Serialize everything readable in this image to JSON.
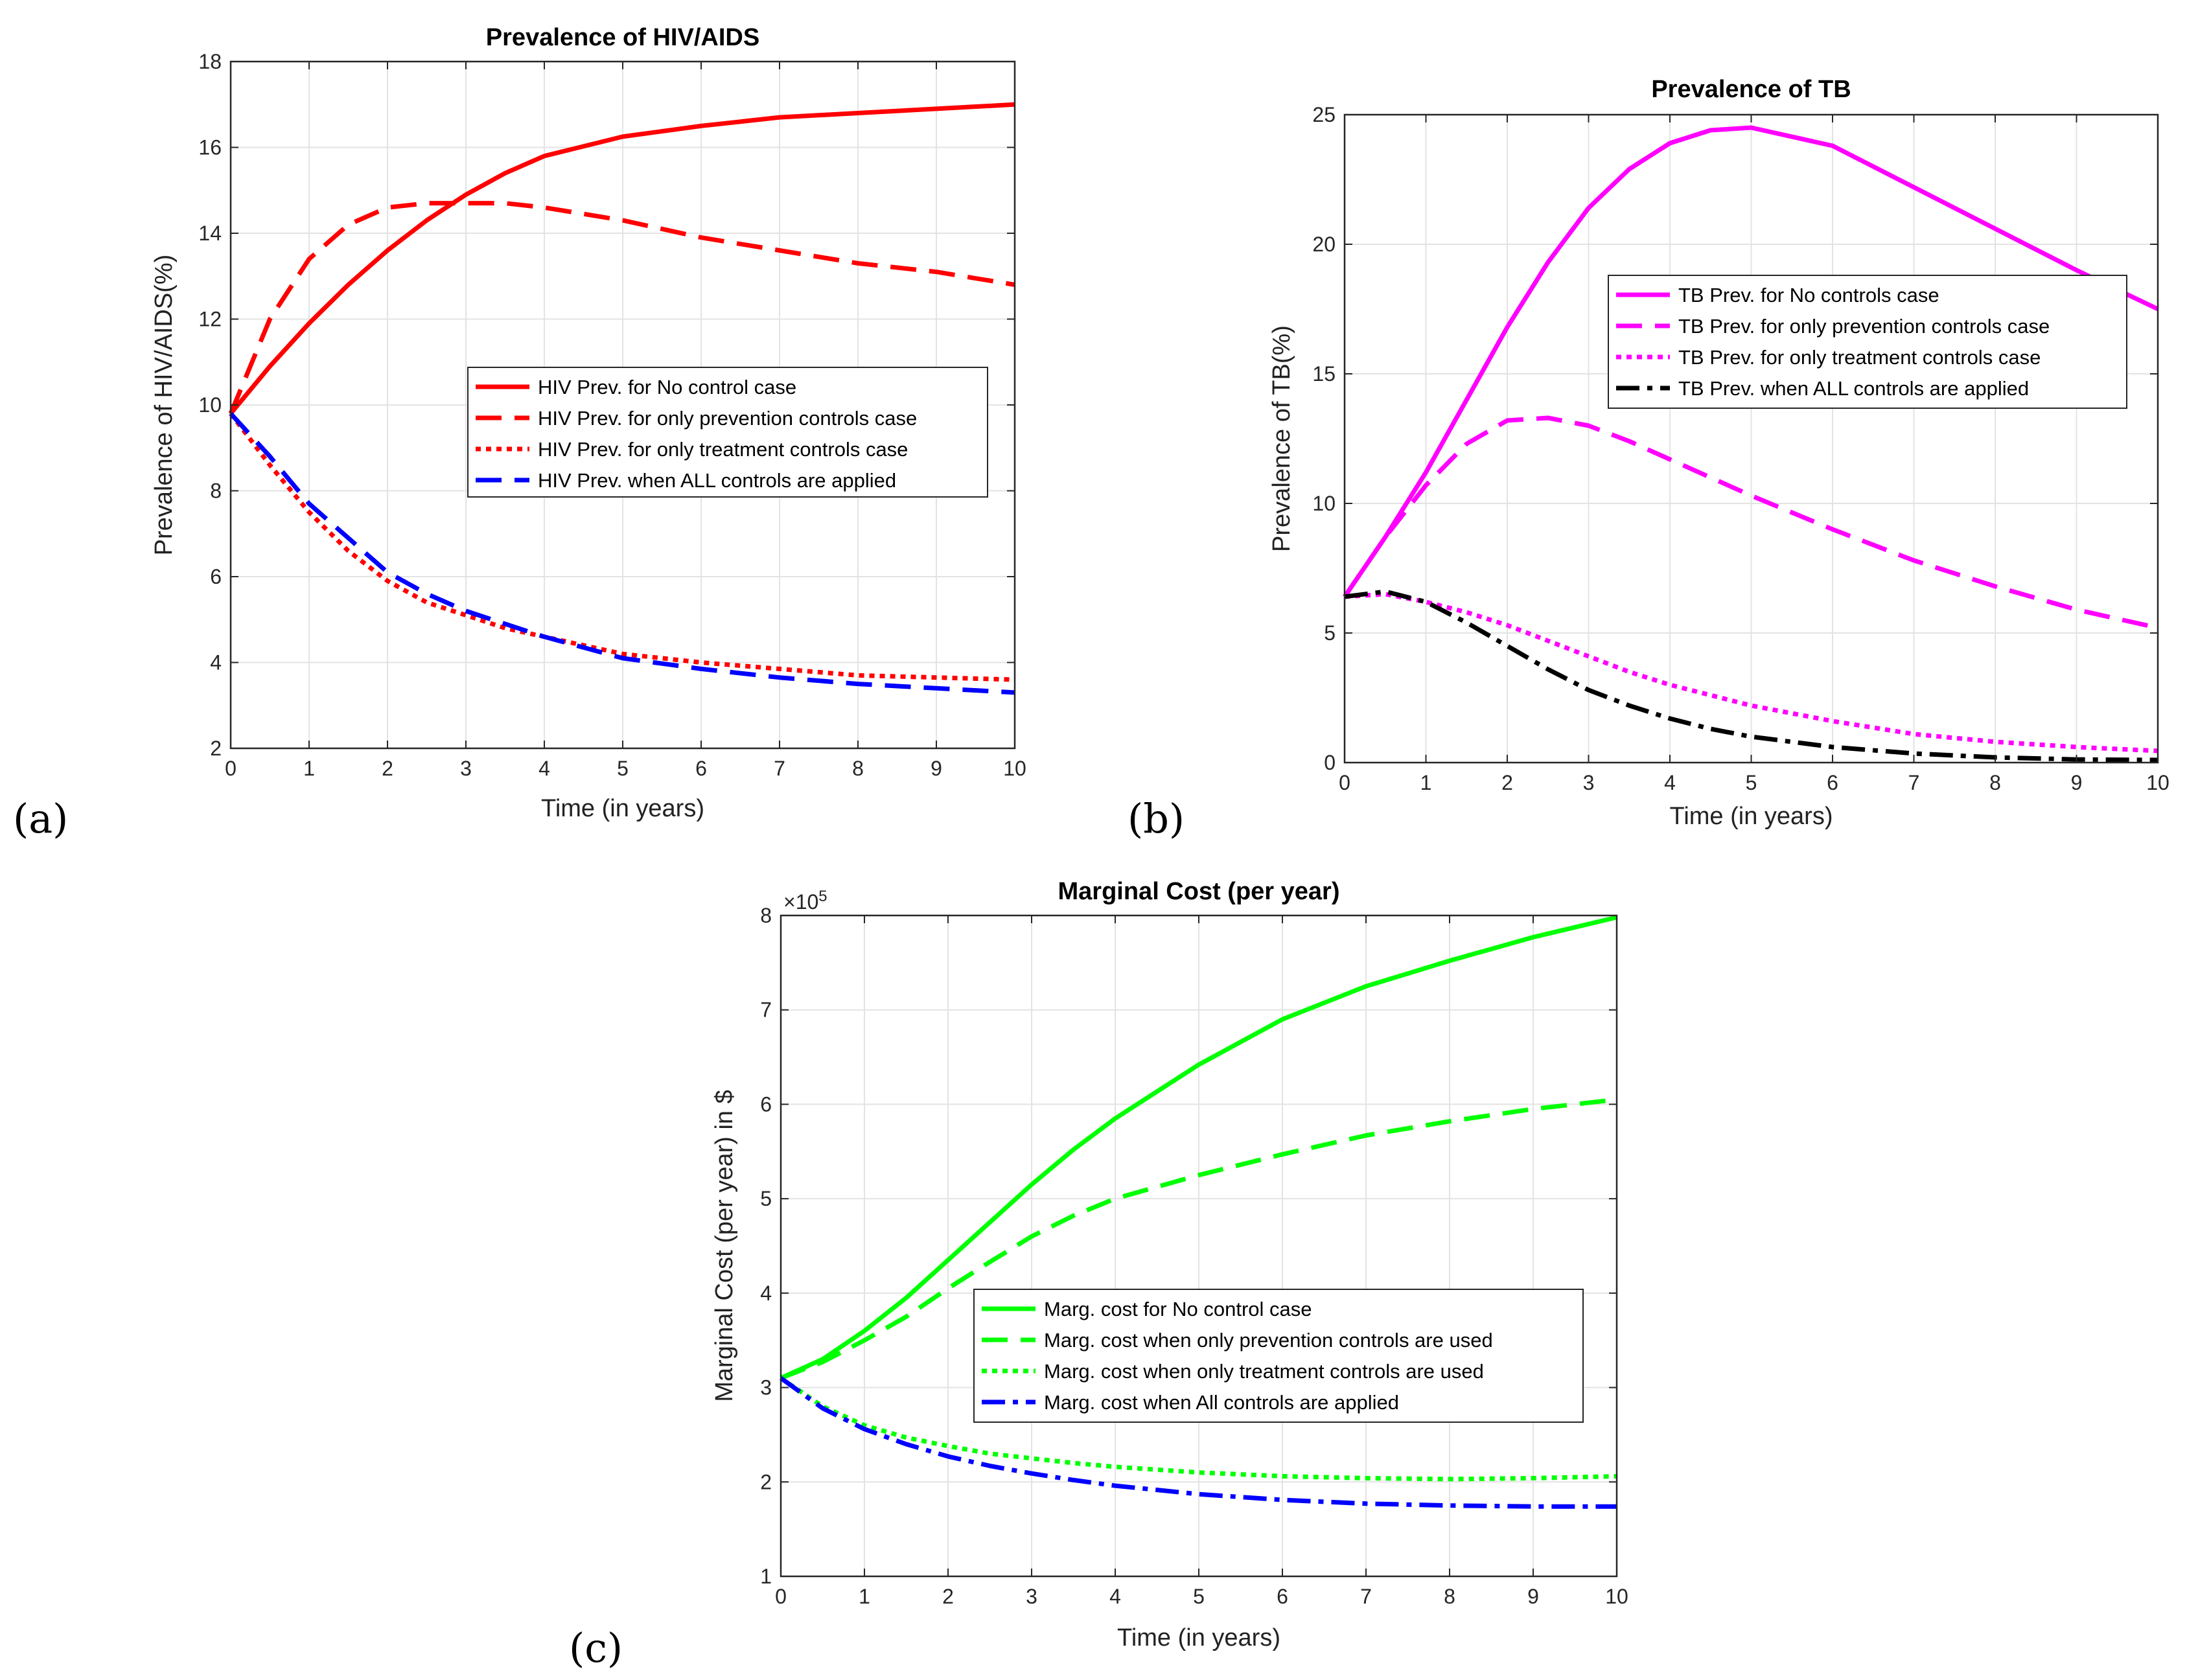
{
  "chart_data": [
    {
      "panel_label": "(a)",
      "type": "line",
      "title": "Prevalence of HIV/AIDS",
      "xlabel": "Time (in years)",
      "ylabel": "Prevalence of HIV/AIDS(%)",
      "xlim": [
        0,
        10
      ],
      "ylim": [
        2,
        18
      ],
      "xticks": [
        0,
        1,
        2,
        3,
        4,
        5,
        6,
        7,
        8,
        9,
        10
      ],
      "yticks": [
        2,
        4,
        6,
        8,
        10,
        12,
        14,
        16,
        18
      ],
      "grid": true,
      "legend_position": "center-right",
      "x": [
        0,
        0.5,
        1,
        1.5,
        2,
        2.5,
        3,
        3.5,
        4,
        5,
        6,
        7,
        8,
        9,
        10
      ],
      "series": [
        {
          "name": "HIV Prev. for No control case",
          "color": "#ff0000",
          "style": "solid",
          "values": [
            9.8,
            10.9,
            11.9,
            12.8,
            13.6,
            14.3,
            14.9,
            15.4,
            15.8,
            16.25,
            16.5,
            16.7,
            16.8,
            16.9,
            17.0
          ]
        },
        {
          "name": "HIV Prev. for only prevention controls case",
          "color": "#ff0000",
          "style": "dashed",
          "values": [
            9.8,
            12.0,
            13.4,
            14.2,
            14.6,
            14.7,
            14.7,
            14.7,
            14.6,
            14.3,
            13.9,
            13.6,
            13.3,
            13.1,
            12.8
          ]
        },
        {
          "name": "HIV Prev. for only treatment controls case",
          "color": "#ff0000",
          "style": "dotted",
          "values": [
            9.8,
            8.6,
            7.5,
            6.6,
            5.9,
            5.4,
            5.1,
            4.8,
            4.6,
            4.2,
            4.0,
            3.85,
            3.7,
            3.65,
            3.6
          ]
        },
        {
          "name": "HIV Prev. when ALL controls are applied",
          "color": "#0000ff",
          "style": "dashed",
          "values": [
            9.8,
            8.8,
            7.7,
            6.9,
            6.1,
            5.6,
            5.2,
            4.9,
            4.6,
            4.1,
            3.85,
            3.65,
            3.5,
            3.4,
            3.3
          ]
        }
      ]
    },
    {
      "panel_label": "(b)",
      "type": "line",
      "title": "Prevalence of TB",
      "xlabel": "Time (in years)",
      "ylabel": "Prevalence of TB(%)",
      "xlim": [
        0,
        10
      ],
      "ylim": [
        0,
        25
      ],
      "xticks": [
        0,
        1,
        2,
        3,
        4,
        5,
        6,
        7,
        8,
        9,
        10
      ],
      "yticks": [
        0,
        5,
        10,
        15,
        20,
        25
      ],
      "grid": true,
      "legend_position": "center-right",
      "x": [
        0,
        0.5,
        1,
        1.5,
        2,
        2.5,
        3,
        3.5,
        4,
        4.5,
        5,
        6,
        7,
        8,
        9,
        10
      ],
      "series": [
        {
          "name": "TB Prev. for No controls case",
          "color": "#ff00ff",
          "style": "solid",
          "values": [
            6.4,
            8.7,
            11.2,
            14.0,
            16.8,
            19.3,
            21.4,
            22.9,
            23.9,
            24.4,
            24.5,
            23.8,
            22.2,
            20.6,
            19.0,
            17.5
          ]
        },
        {
          "name": "TB Prev. for only prevention controls case",
          "color": "#ff00ff",
          "style": "dashed",
          "values": [
            6.4,
            8.7,
            10.7,
            12.3,
            13.2,
            13.3,
            13.0,
            12.4,
            11.7,
            11.0,
            10.3,
            9.0,
            7.8,
            6.8,
            5.9,
            5.2
          ]
        },
        {
          "name": "TB Prev. for only treatment controls case",
          "color": "#ff00ff",
          "style": "dotted",
          "values": [
            6.4,
            6.5,
            6.2,
            5.8,
            5.3,
            4.7,
            4.1,
            3.5,
            3.0,
            2.6,
            2.2,
            1.6,
            1.1,
            0.8,
            0.6,
            0.45
          ]
        },
        {
          "name": "TB Prev. when ALL controls are applied",
          "color": "#000000",
          "style": "dashdot",
          "values": [
            6.4,
            6.6,
            6.2,
            5.4,
            4.5,
            3.6,
            2.8,
            2.2,
            1.7,
            1.3,
            1.0,
            0.6,
            0.35,
            0.2,
            0.12,
            0.1
          ]
        }
      ]
    },
    {
      "panel_label": "(c)",
      "type": "line",
      "title": "Marginal Cost (per year)",
      "xlabel": "Time (in years)",
      "ylabel": "Marginal Cost (per year) in $",
      "exponent_label": "×10",
      "exponent_power": "5",
      "xlim": [
        0,
        10
      ],
      "ylim": [
        1,
        8
      ],
      "xticks": [
        0,
        1,
        2,
        3,
        4,
        5,
        6,
        7,
        8,
        9,
        10
      ],
      "yticks": [
        1,
        2,
        3,
        4,
        5,
        6,
        7,
        8
      ],
      "grid": true,
      "legend_position": "lower-right",
      "x": [
        0,
        0.5,
        1,
        1.5,
        2,
        2.5,
        3,
        3.5,
        4,
        5,
        6,
        7,
        8,
        9,
        10
      ],
      "series": [
        {
          "name": "Marg. cost for No control case",
          "color": "#00ff00",
          "style": "solid",
          "values": [
            3.1,
            3.3,
            3.6,
            3.95,
            4.35,
            4.75,
            5.15,
            5.52,
            5.85,
            6.42,
            6.9,
            7.25,
            7.52,
            7.77,
            7.98
          ]
        },
        {
          "name": "Marg. cost when only prevention controls are used",
          "color": "#00ff00",
          "style": "dashed",
          "values": [
            3.1,
            3.27,
            3.5,
            3.75,
            4.05,
            4.33,
            4.6,
            4.82,
            5.0,
            5.25,
            5.47,
            5.67,
            5.82,
            5.95,
            6.05
          ]
        },
        {
          "name": "Marg. cost when only treatment controls are used",
          "color": "#00ff00",
          "style": "dotted",
          "values": [
            3.1,
            2.8,
            2.6,
            2.47,
            2.38,
            2.3,
            2.25,
            2.2,
            2.16,
            2.1,
            2.06,
            2.04,
            2.03,
            2.04,
            2.06
          ]
        },
        {
          "name": "Marg. cost when All controls are applied",
          "color": "#0000ff",
          "style": "dashdot",
          "values": [
            3.1,
            2.78,
            2.56,
            2.4,
            2.27,
            2.17,
            2.09,
            2.02,
            1.96,
            1.87,
            1.81,
            1.77,
            1.75,
            1.74,
            1.74
          ]
        }
      ]
    }
  ]
}
